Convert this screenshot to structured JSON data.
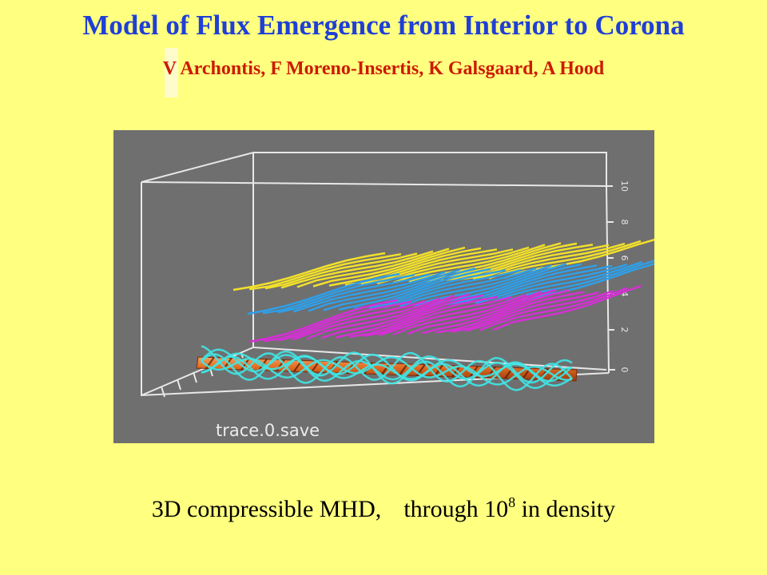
{
  "slide": {
    "title": "Model of Flux  Emergence from Interior to Corona",
    "authors": "V Archontis,   F Moreno-Insertis, K Galsgaard, A Hood",
    "caption": {
      "part1": "3D compressible MHD,",
      "part2": "through 10",
      "exponent": "8",
      "part3": " in density"
    }
  },
  "figure": {
    "label": "trace.0.save",
    "z_ticks": [
      "0",
      "2",
      "4",
      "6",
      "8",
      "10"
    ],
    "colors": {
      "background": "#6f6f6f",
      "box": "#e8e8e8",
      "yellow_lines": "#f2e02a",
      "blue_lines": "#2f9fe8",
      "magenta_lines": "#d62fd6",
      "cyan_lines": "#3fe6e6",
      "tube": "#d8541c"
    }
  }
}
